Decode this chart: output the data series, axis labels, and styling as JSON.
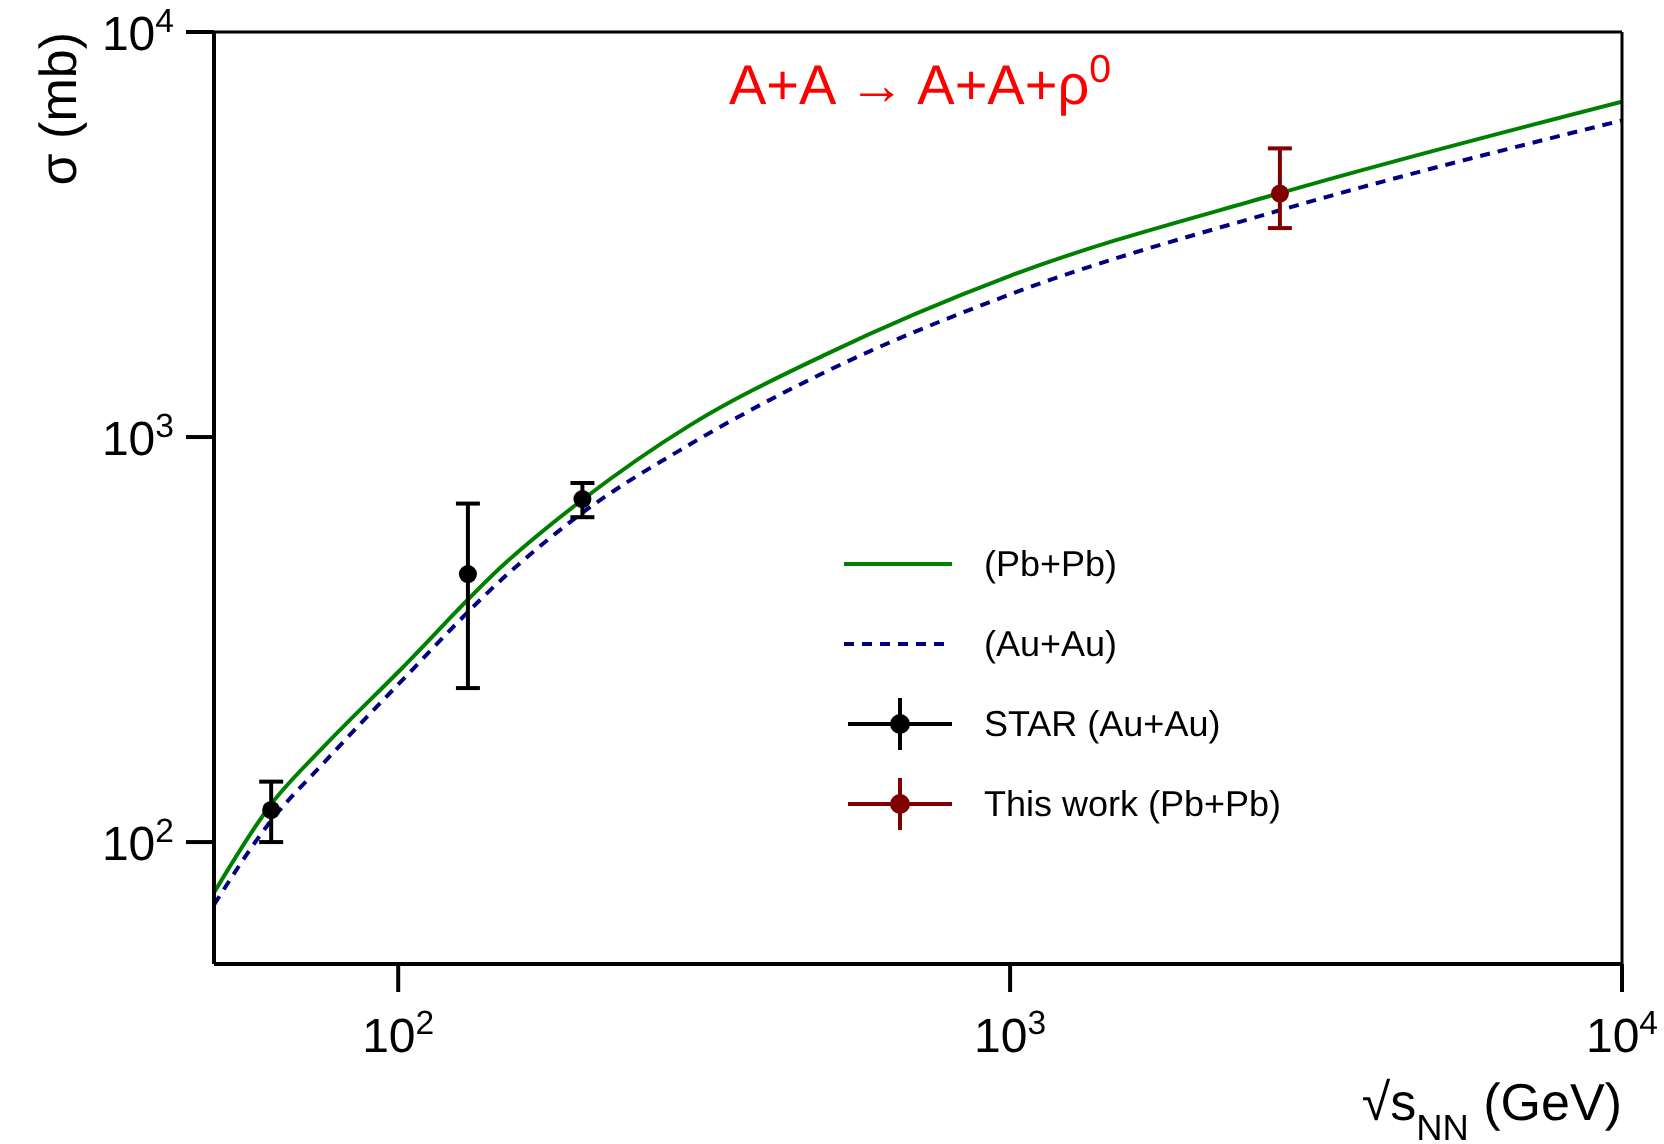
{
  "chart_data": {
    "type": "line",
    "title": "A+A → A+A+ρ$^{0}$",
    "xlabel": "√s$_{NN}$ (GeV)",
    "ylabel": "σ (mb)",
    "log": "xy",
    "grid": false,
    "legend": "bottom right",
    "xlim": [
      50,
      10000
    ],
    "ylim": [
      50,
      10000
    ],
    "xticks": [
      {
        "value": 100,
        "label": "10$^{2}$"
      },
      {
        "value": 1000,
        "label": "10$^{3}$"
      },
      {
        "value": 10000,
        "label": "10$^{4}$"
      }
    ],
    "yticks": [
      {
        "value": 100,
        "label": "10$^{2}$"
      },
      {
        "value": 1000,
        "label": "10$^{3}$"
      },
      {
        "value": 10000,
        "label": "10$^{4}$"
      }
    ],
    "series": [
      {
        "name": "(Pb+Pb)",
        "marker": "none",
        "line_style": "solid",
        "color": "#008000",
        "x": [
          50,
          62,
          75,
          100,
          150,
          200,
          300,
          500,
          1000,
          2760,
          10000
        ],
        "values": [
          75,
          124,
          170,
          263,
          490,
          700,
          1070,
          1600,
          2500,
          4000,
          6730
        ]
      },
      {
        "name": "(Au+Au)",
        "marker": "none",
        "line_style": "dashed",
        "color": "#000080",
        "x": [
          50,
          62,
          75,
          100,
          150,
          200,
          300,
          500,
          1000,
          2760,
          10000
        ],
        "values": [
          70,
          113,
          155,
          245,
          455,
          650,
          960,
          1450,
          2250,
          3630,
          6050
        ]
      },
      {
        "name": "STAR (Au+Au)",
        "type": "scatter",
        "marker": "circle",
        "color": "#000000",
        "x": [
          62,
          130,
          200
        ],
        "values": [
          120,
          459,
          703
        ],
        "errors": [
          [
            100,
            141
          ],
          [
            240,
            685
          ],
          [
            634,
            770
          ]
        ]
      },
      {
        "name": "This work (Pb+Pb)",
        "type": "scatter",
        "marker": "circle",
        "color": "#800000",
        "x": [
          2760
        ],
        "values": [
          3990
        ],
        "errors": [
          [
            3280,
            5160
          ]
        ]
      }
    ]
  }
}
